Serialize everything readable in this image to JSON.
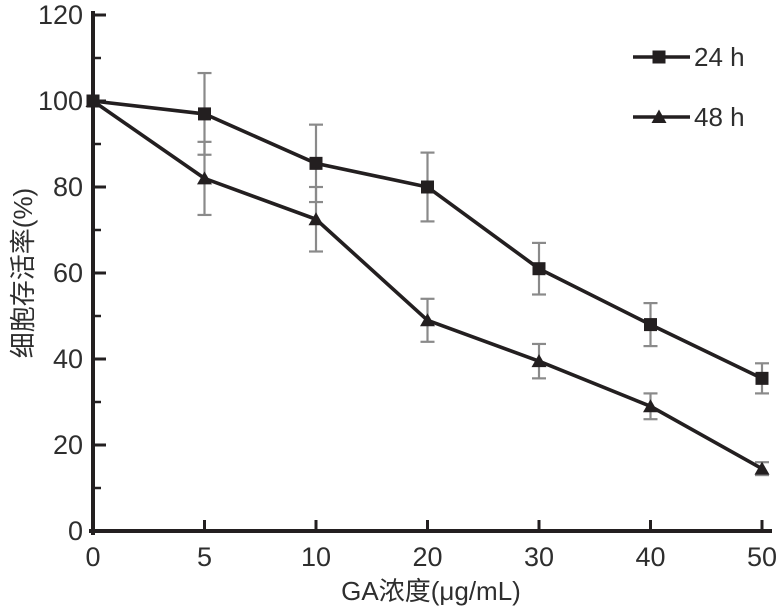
{
  "chart_data": {
    "type": "line",
    "title": "",
    "xlabel": "GA浓度(μg/mL)",
    "ylabel": "细胞存活率(%)",
    "x_tick_labels": [
      "0",
      "5",
      "10",
      "20",
      "30",
      "40",
      "50"
    ],
    "x_values": [
      0,
      5,
      10,
      20,
      30,
      40,
      50
    ],
    "x_spacing": "equal",
    "y_ticks": [
      0,
      20,
      40,
      60,
      80,
      100,
      120
    ],
    "y_minor_ticks": [
      10,
      30,
      50,
      70,
      90,
      110
    ],
    "ylim": [
      0,
      120
    ],
    "grid": false,
    "legend_position": "top-right-inside",
    "legend": [
      {
        "label": "24 h",
        "marker": "square"
      },
      {
        "label": "48 h",
        "marker": "triangle"
      }
    ],
    "series": [
      {
        "name": "24 h",
        "marker": "square",
        "values": [
          100,
          97,
          85.5,
          80,
          61,
          48,
          35.5
        ],
        "error": [
          0,
          9.5,
          9,
          8,
          6,
          5,
          3.5
        ]
      },
      {
        "name": "48 h",
        "marker": "triangle",
        "values": [
          100,
          82,
          72.5,
          49,
          39.5,
          29,
          14.5
        ],
        "error": [
          0,
          8.5,
          7.5,
          5,
          4,
          3,
          1.5
        ]
      }
    ],
    "colors": {
      "line": "#231f20",
      "error_bar": "#8a8a8a",
      "text": "#2e2e2e",
      "background": "#ffffff"
    }
  }
}
